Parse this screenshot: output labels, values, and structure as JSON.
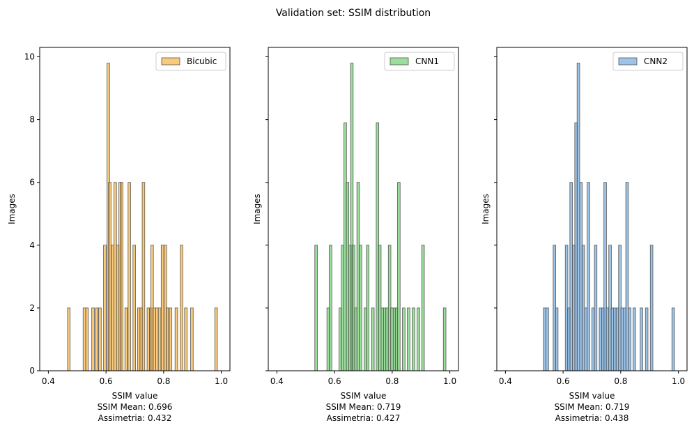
{
  "figure": {
    "title": "Validation set: SSIM distribution"
  },
  "chart_data": [
    {
      "type": "bar",
      "series": [
        {
          "name": "Bicubic",
          "color": "#f5a623"
        }
      ],
      "bins": [
        [
          0.471,
          2
        ],
        [
          0.525,
          2
        ],
        [
          0.534,
          2
        ],
        [
          0.555,
          2
        ],
        [
          0.568,
          2
        ],
        [
          0.579,
          2
        ],
        [
          0.596,
          4
        ],
        [
          0.608,
          9.8
        ],
        [
          0.613,
          6
        ],
        [
          0.623,
          4
        ],
        [
          0.632,
          6
        ],
        [
          0.641,
          4
        ],
        [
          0.649,
          6
        ],
        [
          0.654,
          6
        ],
        [
          0.67,
          2
        ],
        [
          0.681,
          6
        ],
        [
          0.698,
          4
        ],
        [
          0.714,
          2
        ],
        [
          0.722,
          2
        ],
        [
          0.73,
          6
        ],
        [
          0.747,
          2
        ],
        [
          0.755,
          2
        ],
        [
          0.76,
          4
        ],
        [
          0.768,
          2
        ],
        [
          0.777,
          2
        ],
        [
          0.786,
          2
        ],
        [
          0.796,
          4
        ],
        [
          0.806,
          4
        ],
        [
          0.813,
          2
        ],
        [
          0.824,
          2
        ],
        [
          0.844,
          2
        ],
        [
          0.862,
          4
        ],
        [
          0.877,
          2
        ],
        [
          0.898,
          2
        ],
        [
          0.982,
          2
        ]
      ],
      "xlabel": "SSIM value",
      "stats": [
        "SSIM Mean: 0.696",
        "Assimetria: 0.432"
      ],
      "ylabel": "Images",
      "xlim": [
        0.37,
        1.03
      ],
      "ylim": [
        0,
        10.3
      ],
      "xticks": [
        "0.4",
        "0.6",
        "0.8",
        "1.0"
      ],
      "yticks": [
        "0",
        "2",
        "4",
        "6",
        "8",
        "10"
      ],
      "legend_placement": "top-right",
      "bar_width": 0.009
    },
    {
      "type": "bar",
      "series": [
        {
          "name": "CNN1",
          "color": "#5ac85a"
        }
      ],
      "bins": [
        [
          0.536,
          4
        ],
        [
          0.578,
          2
        ],
        [
          0.586,
          4
        ],
        [
          0.62,
          2
        ],
        [
          0.628,
          4
        ],
        [
          0.637,
          7.9
        ],
        [
          0.645,
          6
        ],
        [
          0.654,
          4
        ],
        [
          0.66,
          9.8
        ],
        [
          0.666,
          4
        ],
        [
          0.674,
          2
        ],
        [
          0.682,
          6
        ],
        [
          0.69,
          4
        ],
        [
          0.707,
          2
        ],
        [
          0.715,
          4
        ],
        [
          0.733,
          2
        ],
        [
          0.749,
          7.9
        ],
        [
          0.757,
          4
        ],
        [
          0.766,
          2
        ],
        [
          0.774,
          2
        ],
        [
          0.782,
          2
        ],
        [
          0.791,
          4
        ],
        [
          0.799,
          2
        ],
        [
          0.808,
          2
        ],
        [
          0.815,
          2
        ],
        [
          0.823,
          6
        ],
        [
          0.84,
          2
        ],
        [
          0.857,
          2
        ],
        [
          0.874,
          2
        ],
        [
          0.891,
          2
        ],
        [
          0.907,
          4
        ],
        [
          0.982,
          2
        ]
      ],
      "xlabel": "SSIM value",
      "stats": [
        "SSIM Mean: 0.719",
        "Assimetria: 0.427"
      ],
      "ylabel": "Images",
      "xlim": [
        0.37,
        1.03
      ],
      "ylim": [
        0,
        10.3
      ],
      "xticks": [
        "0.4",
        "0.6",
        "0.8",
        "1.0"
      ],
      "yticks": [],
      "legend_placement": "top-right",
      "bar_width": 0.009
    },
    {
      "type": "bar",
      "series": [
        {
          "name": "CNN2",
          "color": "#5b9bd5"
        }
      ],
      "bins": [
        [
          0.536,
          2
        ],
        [
          0.545,
          2
        ],
        [
          0.57,
          4
        ],
        [
          0.578,
          2
        ],
        [
          0.612,
          4
        ],
        [
          0.62,
          2
        ],
        [
          0.628,
          6
        ],
        [
          0.637,
          4
        ],
        [
          0.645,
          7.9
        ],
        [
          0.653,
          9.8
        ],
        [
          0.662,
          6
        ],
        [
          0.67,
          4
        ],
        [
          0.679,
          2
        ],
        [
          0.688,
          6
        ],
        [
          0.704,
          2
        ],
        [
          0.713,
          4
        ],
        [
          0.73,
          2
        ],
        [
          0.738,
          2
        ],
        [
          0.746,
          6
        ],
        [
          0.754,
          2
        ],
        [
          0.763,
          4
        ],
        [
          0.771,
          2
        ],
        [
          0.78,
          2
        ],
        [
          0.788,
          2
        ],
        [
          0.797,
          4
        ],
        [
          0.805,
          2
        ],
        [
          0.814,
          2
        ],
        [
          0.822,
          6
        ],
        [
          0.831,
          2
        ],
        [
          0.847,
          2
        ],
        [
          0.872,
          2
        ],
        [
          0.89,
          2
        ],
        [
          0.907,
          4
        ],
        [
          0.982,
          2
        ]
      ],
      "xlabel": "SSIM value",
      "stats": [
        "SSIM Mean: 0.719",
        "Assimetria: 0.438"
      ],
      "ylabel": "Images",
      "xlim": [
        0.37,
        1.03
      ],
      "ylim": [
        0,
        10.3
      ],
      "xticks": [
        "0.4",
        "0.6",
        "0.8",
        "1.0"
      ],
      "yticks": [],
      "legend_placement": "top-right",
      "bar_width": 0.009
    }
  ]
}
